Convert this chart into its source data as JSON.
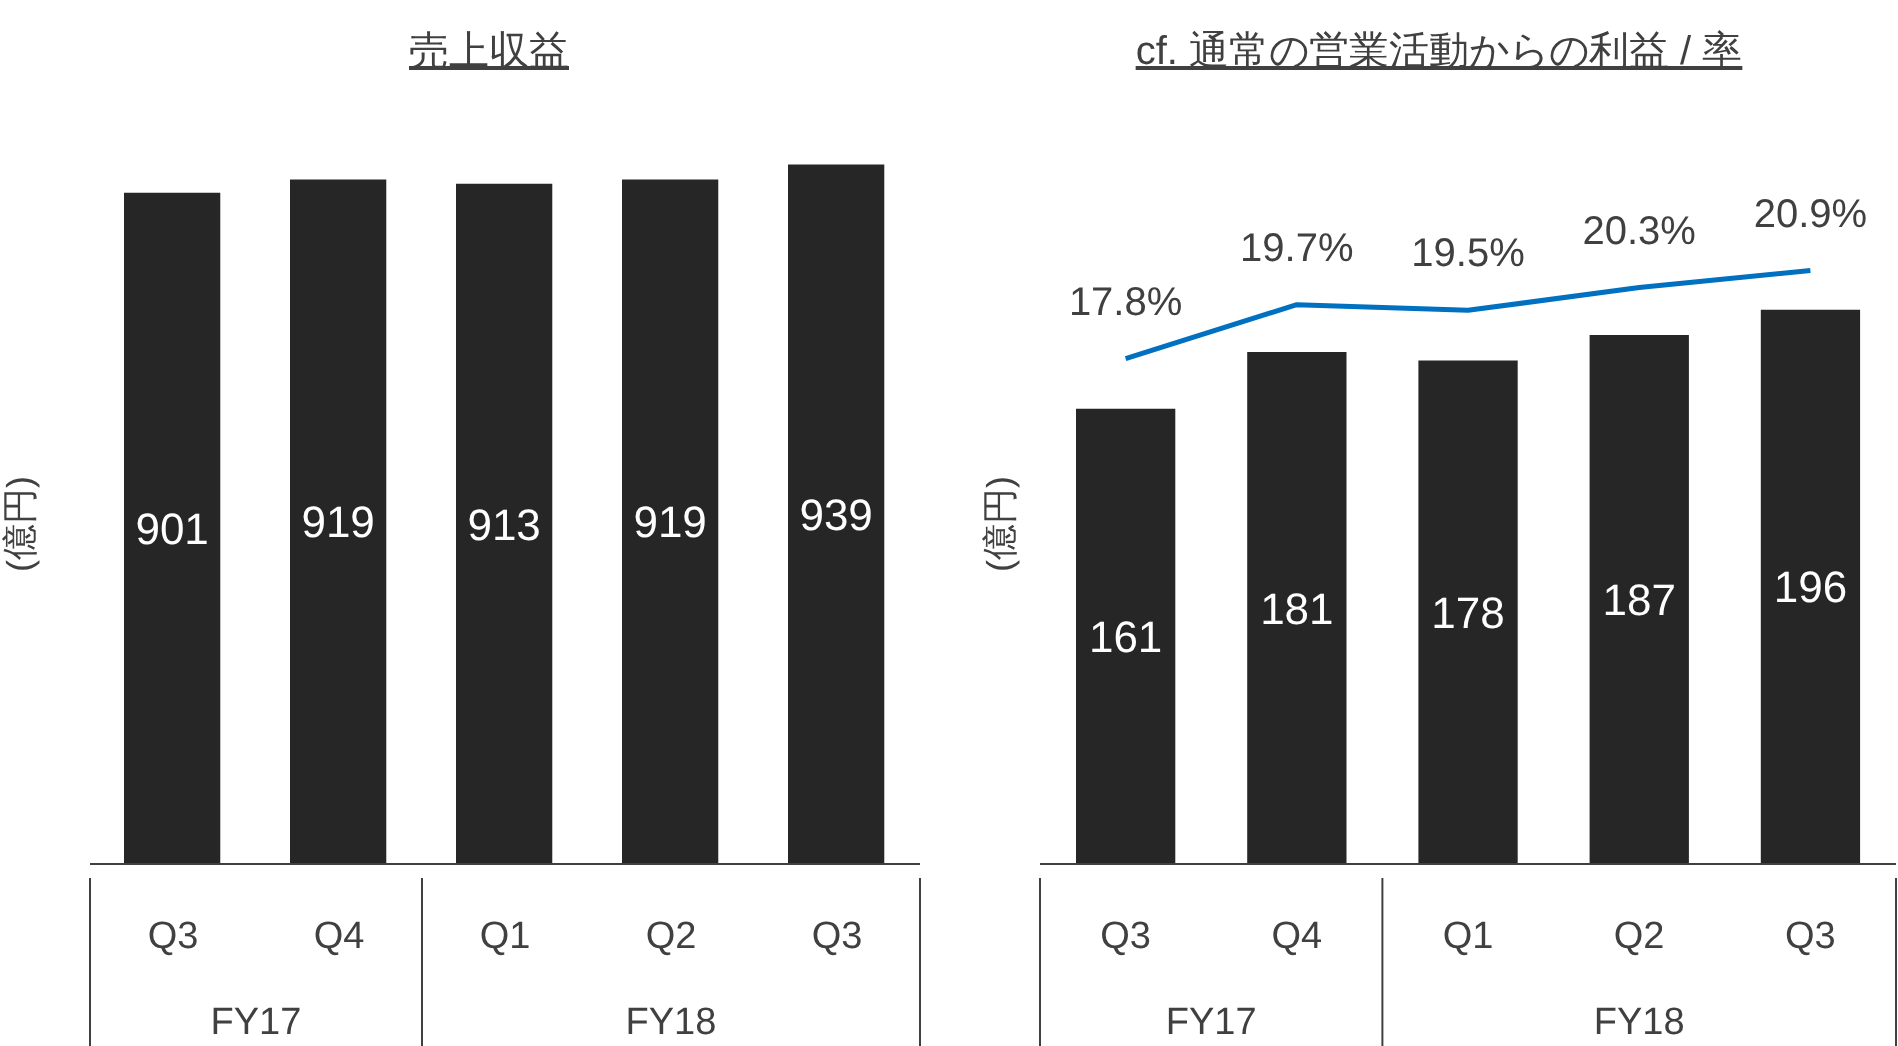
{
  "chart_data": [
    {
      "type": "bar",
      "title": "売上収益",
      "ylabel": "(億円)",
      "categories": [
        "Q3",
        "Q4",
        "Q1",
        "Q2",
        "Q3"
      ],
      "values": [
        901,
        919,
        913,
        919,
        939
      ],
      "color": "#262626",
      "data_labels": true,
      "annotations": [
        "FY17",
        "FY18"
      ]
    },
    {
      "type": "bar",
      "title": "cf. 通常の営業活動からの利益 / 率",
      "ylabel": "(億円)",
      "categories": [
        "Q3",
        "Q4",
        "Q1",
        "Q2",
        "Q3"
      ],
      "data_labels": true,
      "marker": "none",
      "annotations": [
        "FY17",
        "FY18"
      ],
      "series": [
        {
          "type": "bar",
          "color": "#262626",
          "values": [
            161,
            181,
            178,
            187,
            196
          ]
        },
        {
          "type": "line",
          "axis": "y2",
          "color": "#0070c0",
          "values": [
            17.8,
            19.7,
            19.5,
            20.3,
            20.9
          ],
          "value_labels": [
            "17.8%",
            "19.7%",
            "19.5%",
            "20.3%",
            "20.9%"
          ]
        }
      ]
    }
  ]
}
